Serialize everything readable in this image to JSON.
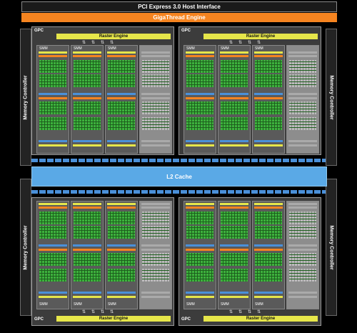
{
  "header": {
    "pcie_label": "PCI Express 3.0 Host Interface",
    "gigathread_label": "GigaThread Engine"
  },
  "memory_controllers": [
    {
      "label": "Memory Controller"
    },
    {
      "label": "Memory Controller"
    },
    {
      "label": "Memory Controller"
    },
    {
      "label": "Memory Controller"
    }
  ],
  "l2_cache_label": "L2 Cache",
  "gpcs": [
    {
      "label": "GPC",
      "raster_label": "Raster Engine",
      "smm_labels": [
        "SMM",
        "SMM",
        "SMM"
      ]
    },
    {
      "label": "GPC",
      "raster_label": "Raster Engine",
      "smm_labels": [
        "SMM",
        "SMM",
        "SMM"
      ]
    },
    {
      "label": "GPC",
      "raster_label": "Raster Engine",
      "smm_labels": [
        "SMM",
        "SMM",
        "SMM"
      ]
    },
    {
      "label": "GPC",
      "raster_label": "Raster Engine",
      "smm_labels": [
        "SMM",
        "SMM",
        "SMM"
      ]
    }
  ],
  "colors": {
    "gigathread": "#f58420",
    "l2_cache": "#5aa9e6",
    "raster_engine": "#e6e64a",
    "cuda_core": "#3db23d",
    "disabled_smm": "#8d8d8d"
  }
}
